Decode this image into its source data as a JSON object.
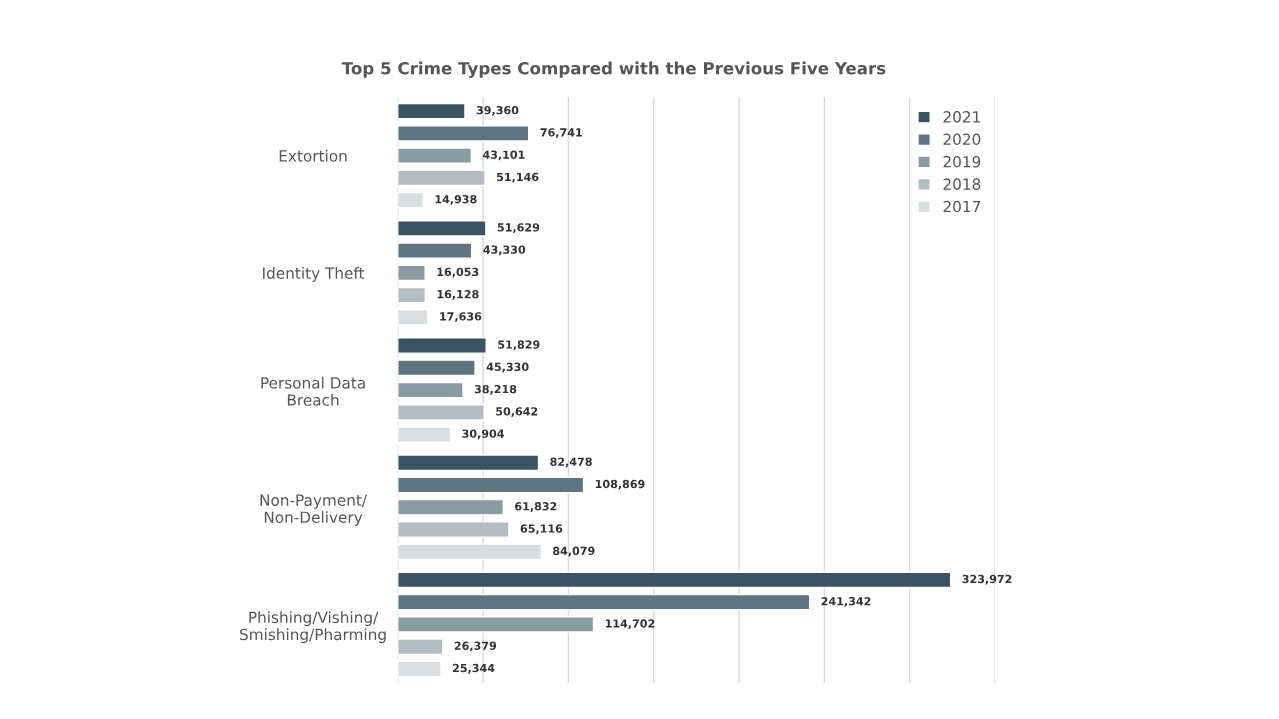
{
  "chart_data": {
    "type": "bar",
    "orientation": "horizontal",
    "title": "Top 5 Crime Types Compared with the Previous Five Years",
    "categories": [
      "Extortion",
      "Identity Theft",
      "Personal Data\nBreach",
      "Non-Payment/\nNon-Delivery",
      "Phishing/Vishing/\nSmishing/Pharming"
    ],
    "series": [
      {
        "name": "2021",
        "color": "#3b5360",
        "values": [
          39360,
          51629,
          51829,
          82478,
          323972
        ],
        "value_labels": [
          "39,360",
          "51,629",
          "51,829",
          "82,478",
          "323,972"
        ]
      },
      {
        "name": "2020",
        "color": "#5f7580",
        "values": [
          76741,
          43330,
          45330,
          108869,
          241342
        ],
        "value_labels": [
          "76,741",
          "43,330",
          "45,330",
          "108,869",
          "241,342"
        ]
      },
      {
        "name": "2019",
        "color": "#8a9ba3",
        "values": [
          43101,
          16053,
          38218,
          61832,
          114702
        ],
        "value_labels": [
          "43,101",
          "16,053",
          "38,218",
          "61,832",
          "114,702"
        ]
      },
      {
        "name": "2018",
        "color": "#b3bec3",
        "values": [
          51146,
          16128,
          50642,
          65116,
          26379
        ],
        "value_labels": [
          "51,146",
          "16,128",
          "50,642",
          "65,116",
          "26,379"
        ]
      },
      {
        "name": "2017",
        "color": "#d9dee0",
        "values": [
          14938,
          17636,
          30904,
          84079,
          25344
        ],
        "value_labels": [
          "14,938",
          "17,636",
          "30,904",
          "84,079",
          "25,344"
        ]
      }
    ],
    "xlim": [
      0,
      350000
    ],
    "xticks": [
      {
        "value": 0,
        "label": null
      },
      {
        "value": 50000,
        "label": null
      },
      {
        "value": 100000,
        "label": null
      },
      {
        "value": 150000,
        "label": null
      },
      {
        "value": 200000,
        "label": null
      },
      {
        "value": 250000,
        "label": null
      },
      {
        "value": 300000,
        "label": null
      },
      {
        "value": 350000,
        "label": null
      }
    ],
    "tick_labels": "y",
    "grid": "x",
    "legend": "top right"
  }
}
